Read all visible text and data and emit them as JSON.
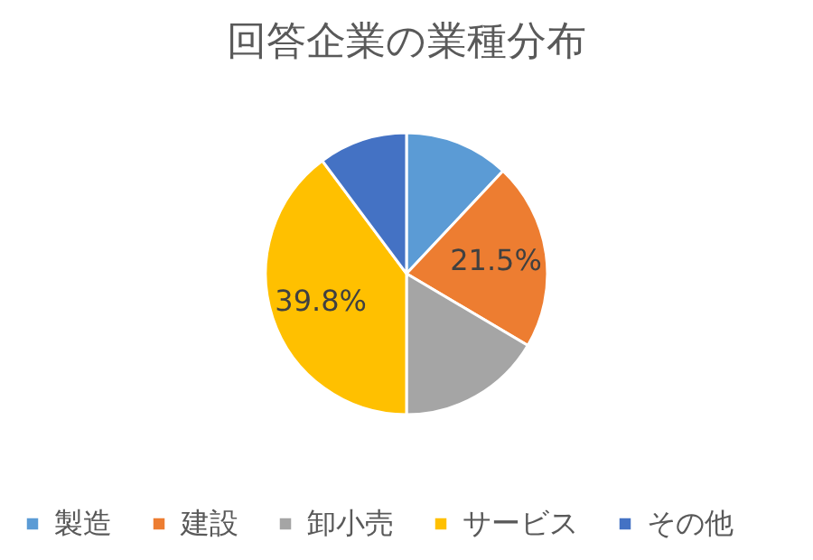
{
  "chart_data": {
    "type": "pie",
    "title": "回答企業の業種分布",
    "categories": [
      "製造",
      "建設",
      "卸小売",
      "サービス",
      "その他"
    ],
    "values": [
      12.0,
      21.5,
      16.5,
      39.8,
      10.2
    ],
    "colors": [
      "#5b9bd5",
      "#ed7d31",
      "#a5a5a5",
      "#ffc000",
      "#4472c4"
    ],
    "value_labels": [
      null,
      "21.5%",
      null,
      "39.8%",
      null
    ],
    "legend": "bottom"
  }
}
